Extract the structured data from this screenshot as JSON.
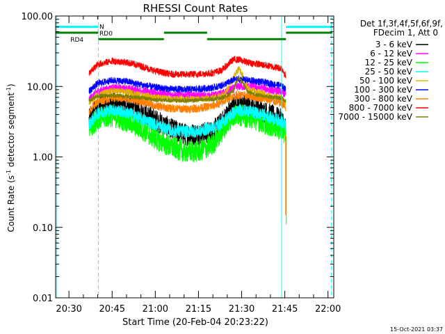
{
  "chart_data": {
    "type": "line",
    "title": "RHESSI Count Rates",
    "xlabel": "Start Time (20-Feb-04 20:23:22)",
    "ylabel_main": "Count Rate (s",
    "ylabel_sup1": "-1",
    "ylabel_mid": " detector segment",
    "ylabel_sup2": "-1",
    "ylabel_end": ")",
    "x_scale": "time (minutes after 20:00 UT)",
    "xlim": [
      25.37,
      122.0
    ],
    "y_scale": "log",
    "ylim": [
      0.01,
      100
    ],
    "x_ticks": [
      {
        "m": 30,
        "label": "20:30"
      },
      {
        "m": 45,
        "label": "20:45"
      },
      {
        "m": 60,
        "label": "21:00"
      },
      {
        "m": 75,
        "label": "21:15"
      },
      {
        "m": 90,
        "label": "21:30"
      },
      {
        "m": 105,
        "label": "21:45"
      },
      {
        "m": 120,
        "label": "22:00"
      }
    ],
    "y_ticks": [
      {
        "v": 100,
        "label": "100.00"
      },
      {
        "v": 10,
        "label": "10.00"
      },
      {
        "v": 1,
        "label": "1.00"
      },
      {
        "v": 0.1,
        "label": "0.10"
      },
      {
        "v": 0.01,
        "label": "0.01"
      }
    ],
    "legend": {
      "placement": "right",
      "header1": "Det 1f,3f,4f,5f,6f,9f,",
      "header2": "FDecim 1, Att 0"
    },
    "time_knots": [
      37,
      40,
      45,
      50,
      55,
      60,
      65,
      70,
      75,
      80,
      83,
      85,
      87,
      89,
      92,
      95,
      98,
      101,
      104,
      105.3
    ],
    "series": [
      {
        "name": "3 - 6 keV",
        "color": "#000000",
        "values": [
          3.3,
          5.0,
          5.8,
          5.3,
          4.3,
          3.3,
          2.5,
          2.1,
          2.1,
          2.3,
          3.0,
          4.0,
          5.2,
          5.6,
          5.2,
          4.8,
          4.3,
          3.8,
          3.3,
          2.5
        ]
      },
      {
        "name": "6 - 12 keV",
        "color": "#ff00ff",
        "values": [
          6.5,
          8.5,
          9.5,
          9.3,
          8.7,
          8.0,
          7.7,
          7.5,
          7.3,
          7.4,
          7.8,
          8.5,
          9.3,
          10.0,
          10.0,
          9.8,
          9.3,
          8.8,
          8.3,
          7.5
        ]
      },
      {
        "name": "12 - 25 keV",
        "color": "#00ff00",
        "values": [
          2.5,
          3.5,
          3.8,
          3.2,
          2.5,
          1.8,
          1.4,
          1.2,
          1.2,
          1.5,
          2.2,
          3.0,
          3.8,
          4.0,
          3.7,
          3.4,
          3.0,
          2.7,
          2.4,
          2.1
        ]
      },
      {
        "name": "25 - 50 keV",
        "color": "#00ffff",
        "values": [
          2.9,
          4.2,
          4.7,
          4.3,
          3.5,
          2.9,
          2.4,
          2.3,
          2.3,
          2.6,
          3.0,
          3.6,
          4.2,
          4.6,
          4.5,
          4.2,
          3.9,
          3.5,
          3.2,
          2.7
        ]
      },
      {
        "name": "50 - 100 keV",
        "color": "#e0b000",
        "values": [
          5.8,
          7.6,
          8.6,
          8.4,
          7.5,
          7.0,
          6.6,
          6.5,
          6.6,
          6.8,
          7.6,
          9.0,
          13.0,
          18.0,
          9.5,
          8.5,
          7.8,
          7.2,
          6.8,
          6.0
        ]
      },
      {
        "name": "100 - 300 keV",
        "color": "#0000ff",
        "values": [
          8.5,
          11.0,
          12.2,
          11.8,
          10.6,
          9.7,
          9.2,
          9.1,
          9.2,
          9.6,
          10.3,
          11.2,
          12.3,
          12.6,
          12.3,
          11.9,
          11.4,
          10.8,
          10.2,
          9.0
        ]
      },
      {
        "name": "300 - 800 keV",
        "color": "#ff7f00",
        "values": [
          4.4,
          6.1,
          6.9,
          6.7,
          6.1,
          5.3,
          4.9,
          4.8,
          4.9,
          5.3,
          5.8,
          6.7,
          7.3,
          7.6,
          7.3,
          7.0,
          6.7,
          6.2,
          5.8,
          4.9
        ]
      },
      {
        "name": "800 - 7000 keV",
        "color": "#ff0000",
        "values": [
          15.0,
          20.5,
          23.0,
          22.0,
          19.5,
          16.5,
          15.0,
          14.8,
          15.0,
          15.5,
          17.0,
          20.0,
          24.0,
          24.0,
          22.0,
          21.0,
          20.0,
          19.0,
          18.0,
          14.0
        ]
      },
      {
        "name": "7000 - 15000 keV",
        "color": "#808000",
        "values": [
          6.3,
          7.3,
          7.5,
          7.3,
          6.9,
          6.5,
          6.3,
          6.3,
          6.4,
          6.6,
          6.9,
          7.4,
          8.6,
          13.5,
          8.4,
          7.6,
          7.3,
          7.0,
          6.8,
          6.2
        ]
      }
    ],
    "attenuator_bars": [
      {
        "label": "N",
        "color": "#00ffff",
        "level": 70,
        "segments": [
          [
            25.4,
            40.2
          ],
          [
            105.4,
            121.5
          ]
        ]
      },
      {
        "label": "RD0",
        "color": "#008000",
        "level": 58,
        "segments": [
          [
            25.4,
            40.2
          ],
          [
            63.0,
            78.0
          ],
          [
            105.4,
            121.5
          ]
        ]
      },
      {
        "label": "RD4",
        "color": "#008000",
        "level": 47,
        "segments": [
          [
            40.2,
            63.0
          ],
          [
            78.0,
            105.4
          ]
        ]
      }
    ],
    "vlines": [
      {
        "m": 25.8,
        "color": "#00ffff",
        "style": "solid"
      },
      {
        "m": 40.2,
        "color": "#00ffff",
        "style": "dashed"
      },
      {
        "m": 103.9,
        "color": "#00ffff",
        "style": "solid"
      },
      {
        "m": 121.2,
        "color": "#00ffff",
        "style": "dashed"
      }
    ],
    "timestamp": "15-Oct-2021 03:37"
  }
}
